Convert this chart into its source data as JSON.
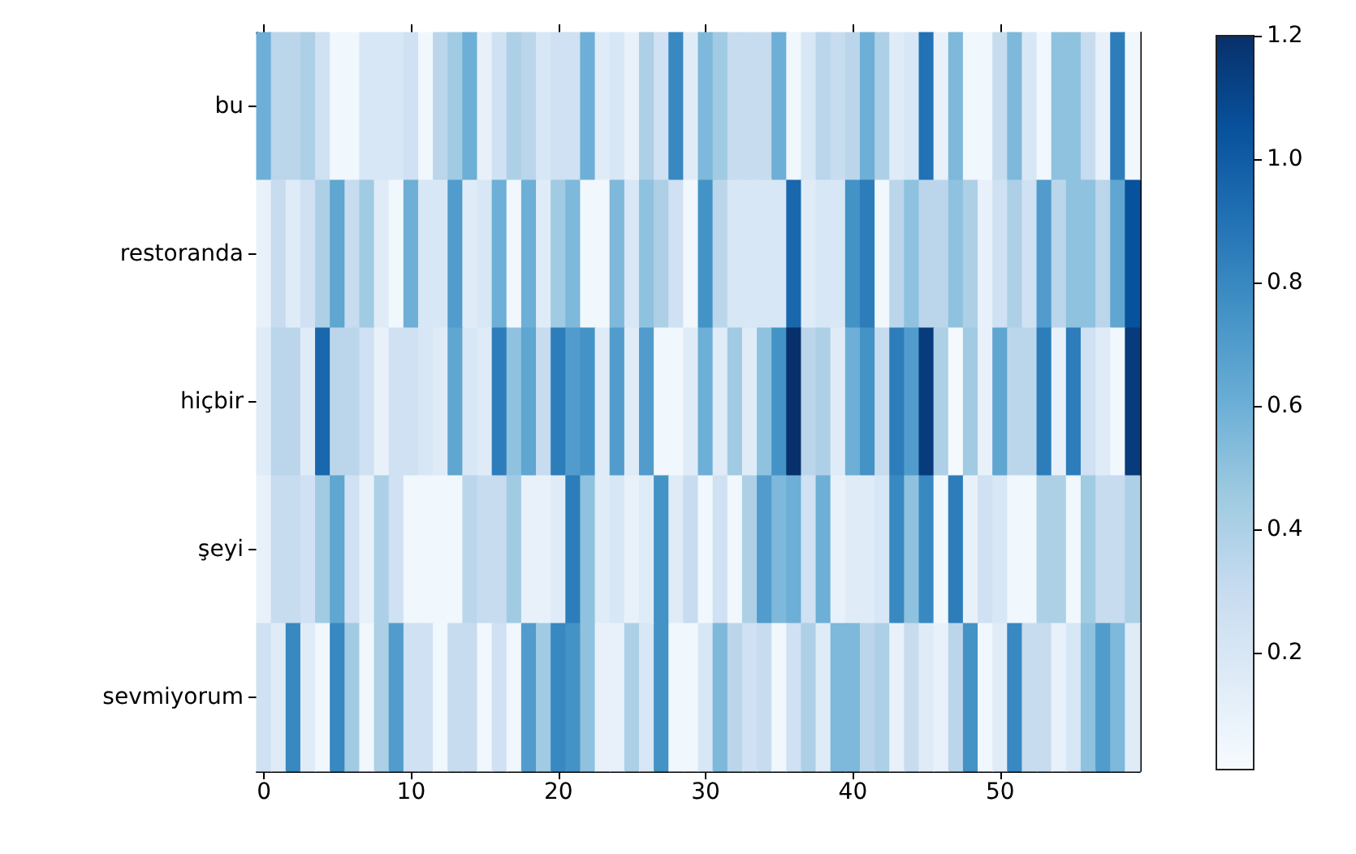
{
  "chart_data": {
    "type": "heatmap",
    "categories": [
      "0",
      null,
      null,
      null,
      null,
      null,
      null,
      null,
      null,
      null,
      "10",
      null,
      null,
      null,
      null,
      null,
      null,
      null,
      null,
      null,
      "20",
      null,
      null,
      null,
      null,
      null,
      null,
      null,
      null,
      null,
      "30",
      null,
      null,
      null,
      null,
      null,
      null,
      null,
      null,
      null,
      "40",
      null,
      null,
      null,
      null,
      null,
      null,
      null,
      null,
      null,
      "50",
      null,
      null,
      null,
      null,
      null,
      null,
      null,
      null,
      null
    ],
    "y_categories": [
      "bu",
      "restoranda",
      "hiçbir",
      "şeyi",
      "sevmiyorum"
    ],
    "cells": [
      [
        0.6,
        0.35,
        0.35,
        0.4,
        0.25,
        0.05,
        0.05,
        0.2,
        0.2,
        0.2,
        0.25,
        0.05,
        0.35,
        0.45,
        0.6,
        0.1,
        0.25,
        0.4,
        0.35,
        0.2,
        0.25,
        0.25,
        0.6,
        0.15,
        0.2,
        0.1,
        0.4,
        0.25,
        0.8,
        0.15,
        0.55,
        0.45,
        0.3,
        0.3,
        0.3,
        0.6,
        0.05,
        0.2,
        0.35,
        0.3,
        0.35,
        0.6,
        0.4,
        0.15,
        0.2,
        0.9,
        0.1,
        0.55,
        0.05,
        0.05,
        0.3,
        0.55,
        0.2,
        0.05,
        0.5,
        0.5,
        0.3,
        0.1,
        0.85,
        0.05
      ],
      [
        0.1,
        0.3,
        0.15,
        0.25,
        0.4,
        0.65,
        0.3,
        0.45,
        0.15,
        0.05,
        0.6,
        0.2,
        0.2,
        0.7,
        0.15,
        0.2,
        0.6,
        0.05,
        0.6,
        0.15,
        0.45,
        0.55,
        0.05,
        0.05,
        0.55,
        0.2,
        0.5,
        0.4,
        0.25,
        0.05,
        0.75,
        0.35,
        0.2,
        0.2,
        0.2,
        0.2,
        0.95,
        0.15,
        0.2,
        0.2,
        0.75,
        0.85,
        0.05,
        0.35,
        0.5,
        0.35,
        0.35,
        0.5,
        0.4,
        0.1,
        0.25,
        0.4,
        0.25,
        0.7,
        0.35,
        0.5,
        0.5,
        0.35,
        0.65,
        1.05
      ],
      [
        0.15,
        0.35,
        0.35,
        0.15,
        0.95,
        0.35,
        0.35,
        0.25,
        0.1,
        0.25,
        0.25,
        0.2,
        0.15,
        0.65,
        0.2,
        0.15,
        0.85,
        0.5,
        0.65,
        0.3,
        0.85,
        0.7,
        0.75,
        0.15,
        0.7,
        0.15,
        0.7,
        0.05,
        0.05,
        0.15,
        0.6,
        0.15,
        0.45,
        0.15,
        0.5,
        0.75,
        1.2,
        0.35,
        0.4,
        0.15,
        0.6,
        0.75,
        0.3,
        0.85,
        0.7,
        1.15,
        0.4,
        0.03,
        0.45,
        0.1,
        0.65,
        0.35,
        0.35,
        0.85,
        0.1,
        0.85,
        0.25,
        0.15,
        0.05,
        1.15
      ],
      [
        0.1,
        0.3,
        0.3,
        0.25,
        0.45,
        0.65,
        0.25,
        0.1,
        0.4,
        0.25,
        0.05,
        0.05,
        0.05,
        0.05,
        0.35,
        0.3,
        0.3,
        0.45,
        0.1,
        0.1,
        0.15,
        0.85,
        0.5,
        0.15,
        0.2,
        0.1,
        0.15,
        0.75,
        0.15,
        0.3,
        0.05,
        0.25,
        0.05,
        0.4,
        0.7,
        0.55,
        0.6,
        0.25,
        0.6,
        0.1,
        0.15,
        0.15,
        0.2,
        0.8,
        0.5,
        0.8,
        0.05,
        0.85,
        0.1,
        0.25,
        0.2,
        0.05,
        0.05,
        0.4,
        0.4,
        0.05,
        0.45,
        0.3,
        0.3,
        0.4
      ],
      [
        0.25,
        0.15,
        0.8,
        0.15,
        0.05,
        0.8,
        0.45,
        0.05,
        0.4,
        0.7,
        0.25,
        0.25,
        0.05,
        0.3,
        0.3,
        0.05,
        0.25,
        0.05,
        0.7,
        0.45,
        0.8,
        0.75,
        0.5,
        0.1,
        0.1,
        0.4,
        0.2,
        0.75,
        0.05,
        0.05,
        0.2,
        0.55,
        0.35,
        0.25,
        0.3,
        0.05,
        0.25,
        0.4,
        0.15,
        0.55,
        0.55,
        0.35,
        0.4,
        0.1,
        0.3,
        0.15,
        0.1,
        0.35,
        0.75,
        0.05,
        0.15,
        0.8,
        0.3,
        0.3,
        0.1,
        0.2,
        0.5,
        0.7,
        0.55,
        0.15
      ]
    ],
    "clim": [
      0.01,
      1.2
    ],
    "cticks": [
      0.2,
      0.4,
      0.6,
      0.8,
      {
        "value": 1,
        "label": "1.0"
      },
      1.2
    ]
  }
}
